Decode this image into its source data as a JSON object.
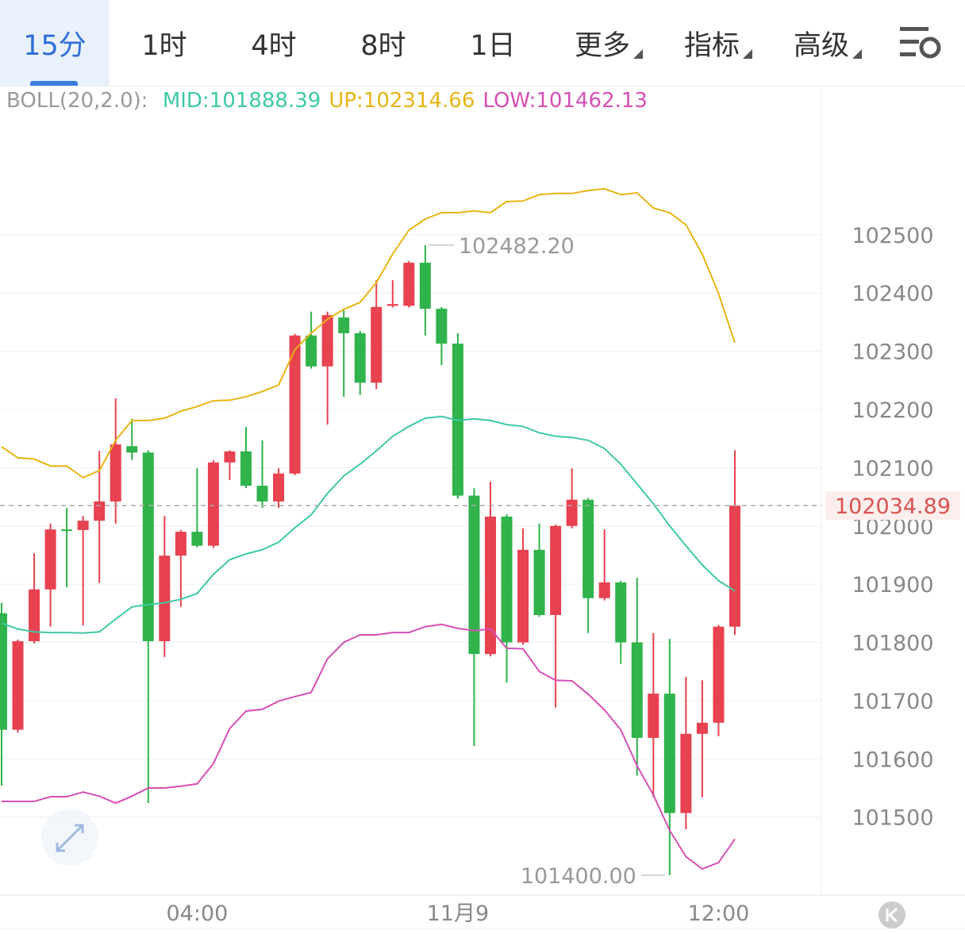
{
  "tabs": [
    {
      "label": "15分"
    },
    {
      "label": "1时"
    },
    {
      "label": "4时"
    },
    {
      "label": "8时"
    },
    {
      "label": "1日"
    },
    {
      "label": "更多",
      "menu": true
    },
    {
      "label": "指标",
      "menu": true
    },
    {
      "label": "高级",
      "menu": true
    }
  ],
  "chart_data": {
    "type": "candlestick",
    "indicator_label": "BOLL(20,2.0):",
    "categories": [
      null,
      null,
      null,
      null,
      null,
      null,
      null,
      null,
      null,
      null,
      null,
      null,
      "04:00",
      null,
      null,
      null,
      null,
      null,
      null,
      null,
      null,
      null,
      null,
      null,
      null,
      null,
      null,
      null,
      "11月9",
      null,
      null,
      null,
      null,
      null,
      null,
      null,
      null,
      null,
      null,
      null,
      null,
      null,
      null,
      null,
      "12:00",
      null
    ],
    "open": [
      101850,
      101650,
      101802,
      101891,
      101994,
      101993,
      102009,
      102042,
      102137,
      102126,
      101802,
      101949,
      101990,
      101966,
      102109,
      102128,
      102069,
      102042,
      102090,
      102327,
      102274,
      102358,
      102331,
      102246,
      102378,
      102378,
      102452,
      102373,
      102313,
      102052,
      101780,
      102016,
      101800,
      101959,
      101847,
      102000,
      102045,
      101876,
      101903,
      101800,
      101636,
      101712,
      101507,
      101643,
      101662,
      101827
    ],
    "high": [
      101868,
      101805,
      101953,
      102004,
      102031,
      102017,
      102129,
      102219,
      102184,
      102130,
      102017,
      101993,
      102099,
      102113,
      102130,
      102170,
      102147,
      102099,
      102330,
      102368,
      102368,
      102372,
      102335,
      102422,
      102422,
      102455,
      102482.2,
      102376,
      102331,
      102065,
      102076,
      102020,
      101996,
      102004,
      102002,
      102099,
      102048,
      101994,
      101906,
      101911,
      101816,
      101806,
      101741,
      101735,
      101830,
      102130
    ],
    "low": [
      101554,
      101645,
      101798,
      101827,
      101895,
      101829,
      101902,
      102004,
      102113,
      101524,
      101775,
      101861,
      101963,
      101962,
      102079,
      102065,
      102031,
      102031,
      102087,
      102270,
      102174,
      102222,
      102225,
      102235,
      102375,
      102375,
      102327,
      102276,
      102047,
      101622,
      101776,
      101731,
      101796,
      101844,
      101688,
      101996,
      101816,
      101872,
      101763,
      101571,
      101534,
      101400,
      101479,
      101534,
      101639,
      101813
    ],
    "close": [
      101650,
      101802,
      101891,
      101994,
      101992,
      102009,
      102042,
      102140,
      102126,
      101802,
      101949,
      101990,
      101966,
      102109,
      102128,
      102069,
      102042,
      102090,
      102327,
      102274,
      102362,
      102331,
      102246,
      102376,
      102381,
      102452,
      102373,
      102313,
      102052,
      101780,
      102016,
      101800,
      101959,
      101847,
      102000,
      102045,
      101876,
      101903,
      101800,
      101636,
      101712,
      101507,
      101643,
      101662,
      101827,
      102034.89
    ],
    "up_color": "#e8414f",
    "down_color": "#2fb34a",
    "series": [
      {
        "name": "MID",
        "legend_label": "MID:101888.39",
        "color": "#3ec9a7",
        "values": [
          101833,
          101823,
          101818,
          101817,
          101817,
          101816,
          101818,
          101840,
          101861,
          101865,
          101868,
          101874,
          101884,
          101917,
          101942,
          101952,
          101959,
          101972,
          101997,
          102019,
          102056,
          102086,
          102106,
          102129,
          102154,
          102171,
          102185,
          102188,
          102181,
          102184,
          102181,
          102174,
          102171,
          102160,
          102154,
          102152,
          102147,
          102133,
          102106,
          102072,
          102038,
          102000,
          101966,
          101933,
          101906,
          101888.39
        ]
      },
      {
        "name": "UP",
        "legend_label": "UP:102314.66",
        "color": "#e8b416",
        "values": [
          102136,
          102117,
          102115,
          102103,
          102103,
          102083,
          102095,
          102147,
          102181,
          102181,
          102185,
          102197,
          102205,
          102215,
          102216,
          102222,
          102231,
          102242,
          102303,
          102331,
          102355,
          102372,
          102384,
          102418,
          102467,
          102508,
          102527,
          102538,
          102538,
          102541,
          102538,
          102557,
          102558,
          102569,
          102571,
          102571,
          102576,
          102579,
          102569,
          102572,
          102546,
          102538,
          102517,
          102467,
          102399,
          102314.66
        ]
      },
      {
        "name": "LOW",
        "legend_label": "LOW:101462.13",
        "color": "#d64fb5",
        "values": [
          101527,
          101527,
          101527,
          101535,
          101535,
          101543,
          101536,
          101524,
          101536,
          101550,
          101550,
          101553,
          101557,
          101592,
          101652,
          101682,
          101685,
          101699,
          101707,
          101714,
          101772,
          101800,
          101813,
          101813,
          101817,
          101817,
          101827,
          101831,
          101824,
          101820,
          101823,
          101790,
          101789,
          101750,
          101735,
          101734,
          101711,
          101684,
          101650,
          101588,
          101538,
          101477,
          101432,
          101411,
          101422,
          101462.13
        ]
      }
    ],
    "ylim": [
      101366,
      102756
    ],
    "yticks": [
      101500,
      101600,
      101700,
      101800,
      101900,
      102000,
      102100,
      102200,
      102300,
      102400,
      102500
    ],
    "grid": true,
    "max_label": {
      "value": 102482.2,
      "label": "102482.20"
    },
    "min_label": {
      "value": 101400,
      "label": "101400.00"
    },
    "last_price": {
      "value": 102034.89,
      "label": "102034.89"
    }
  }
}
